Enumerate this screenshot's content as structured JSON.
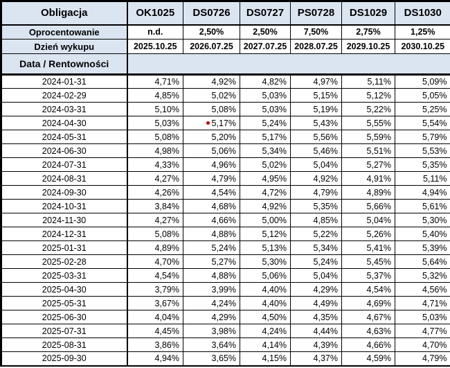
{
  "colors": {
    "header_bg": "#dbe5f1",
    "grid_border": "#000000",
    "red_dot": "#c00000",
    "text": "#000000"
  },
  "table": {
    "corner_labels": {
      "obligacja": "Obligacja",
      "oprocentowanie": "Oprocentowanie",
      "dzien_wykupu": "Dzień wykupu",
      "data_rentownosci": "Data / Rentowności"
    },
    "bonds": [
      "OK1025",
      "DS0726",
      "DS0727",
      "PS0728",
      "DS1029",
      "DS1030"
    ],
    "oprocentowanie": [
      "n.d.",
      "2,50%",
      "2,50%",
      "7,50%",
      "2,75%",
      "1,25%"
    ],
    "dzien_wykupu": [
      "2025.10.25",
      "2026.07.25",
      "2027.07.25",
      "2028.07.25",
      "2029.10.25",
      "2030.10.25"
    ],
    "rows": [
      {
        "date": "2024-01-31",
        "values": [
          "4,71%",
          "4,92%",
          "4,82%",
          "4,97%",
          "5,11%",
          "5,09%"
        ]
      },
      {
        "date": "2024-02-29",
        "values": [
          "4,85%",
          "5,02%",
          "5,03%",
          "5,15%",
          "5,12%",
          "5,05%"
        ]
      },
      {
        "date": "2024-03-31",
        "values": [
          "5,10%",
          "5,08%",
          "5,03%",
          "5,19%",
          "5,22%",
          "5,25%"
        ]
      },
      {
        "date": "2024-04-30",
        "values": [
          "5,03%",
          "5,17%",
          "5,24%",
          "5,43%",
          "5,55%",
          "5,54%"
        ]
      },
      {
        "date": "2024-05-31",
        "values": [
          "5,08%",
          "5,20%",
          "5,17%",
          "5,56%",
          "5,59%",
          "5,79%"
        ]
      },
      {
        "date": "2024-06-30",
        "values": [
          "4,98%",
          "5,06%",
          "5,34%",
          "5,46%",
          "5,51%",
          "5,53%"
        ]
      },
      {
        "date": "2024-07-31",
        "values": [
          "4,33%",
          "4,96%",
          "5,02%",
          "5,04%",
          "5,27%",
          "5,35%"
        ]
      },
      {
        "date": "2024-08-31",
        "values": [
          "4,27%",
          "4,79%",
          "4,95%",
          "4,92%",
          "4,91%",
          "5,11%"
        ]
      },
      {
        "date": "2024-09-30",
        "values": [
          "4,26%",
          "4,54%",
          "4,72%",
          "4,79%",
          "4,89%",
          "4,94%"
        ]
      },
      {
        "date": "2024-10-31",
        "values": [
          "3,84%",
          "4,68%",
          "4,92%",
          "5,35%",
          "5,66%",
          "5,61%"
        ]
      },
      {
        "date": "2024-11-30",
        "values": [
          "4,27%",
          "4,66%",
          "5,00%",
          "4,85%",
          "5,04%",
          "5,30%"
        ]
      },
      {
        "date": "2024-12-31",
        "values": [
          "5,08%",
          "4,88%",
          "5,12%",
          "5,22%",
          "5,26%",
          "5,40%"
        ]
      },
      {
        "date": "2025-01-31",
        "values": [
          "4,89%",
          "5,24%",
          "5,13%",
          "5,34%",
          "5,41%",
          "5,39%"
        ]
      },
      {
        "date": "2025-02-28",
        "values": [
          "4,70%",
          "5,27%",
          "5,30%",
          "5,24%",
          "5,45%",
          "5,64%"
        ]
      },
      {
        "date": "2025-03-31",
        "values": [
          "4,54%",
          "4,88%",
          "5,06%",
          "5,04%",
          "5,37%",
          "5,32%"
        ]
      },
      {
        "date": "2025-04-30",
        "values": [
          "3,79%",
          "3,99%",
          "4,40%",
          "4,29%",
          "4,54%",
          "4,56%"
        ]
      },
      {
        "date": "2025-05-31",
        "values": [
          "3,67%",
          "4,24%",
          "4,40%",
          "4,49%",
          "4,69%",
          "4,71%"
        ]
      },
      {
        "date": "2025-06-30",
        "values": [
          "4,04%",
          "4,29%",
          "4,50%",
          "4,35%",
          "4,67%",
          "5,03%"
        ]
      },
      {
        "date": "2025-07-31",
        "values": [
          "4,45%",
          "3,98%",
          "4,24%",
          "4,44%",
          "4,63%",
          "4,77%"
        ]
      },
      {
        "date": "2025-08-31",
        "values": [
          "3,86%",
          "3,64%",
          "4,14%",
          "4,39%",
          "4,66%",
          "4,70%"
        ]
      },
      {
        "date": "2025-09-30",
        "values": [
          "4,94%",
          "3,65%",
          "4,15%",
          "4,37%",
          "4,59%",
          "4,79%"
        ]
      }
    ],
    "red_dot_marker": {
      "row_index": 3,
      "col_index": 1
    }
  }
}
